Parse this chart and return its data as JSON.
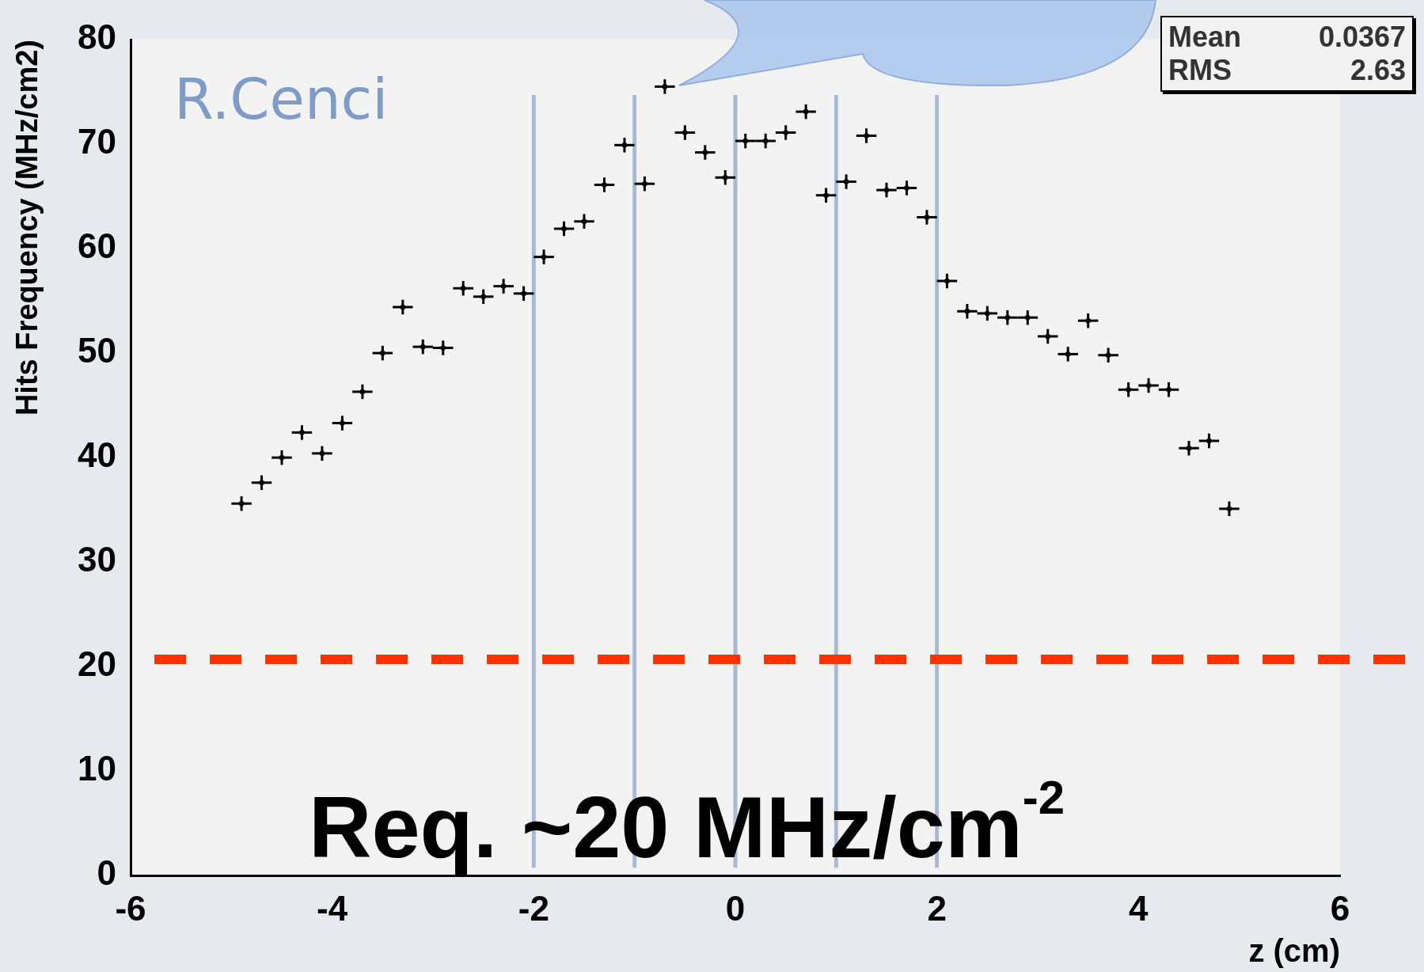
{
  "chart_data": {
    "type": "scatter",
    "xlabel": "z (cm)",
    "ylabel": "Hits Frequency (MHz/cm2)",
    "x": [
      -4.9,
      -4.7,
      -4.5,
      -4.3,
      -4.1,
      -3.9,
      -3.7,
      -3.5,
      -3.3,
      -3.1,
      -2.9,
      -2.7,
      -2.5,
      -2.3,
      -2.1,
      -1.9,
      -1.7,
      -1.5,
      -1.3,
      -1.1,
      -0.9,
      -0.7,
      -0.5,
      -0.3,
      -0.1,
      0.1,
      0.3,
      0.5,
      0.7,
      0.9,
      1.1,
      1.3,
      1.5,
      1.7,
      1.9,
      2.1,
      2.3,
      2.5,
      2.7,
      2.9,
      3.1,
      3.3,
      3.5,
      3.7,
      3.9,
      4.1,
      4.3,
      4.5,
      4.7,
      4.9
    ],
    "values": [
      35.6,
      37.6,
      40.0,
      42.4,
      40.4,
      43.3,
      46.3,
      50.0,
      54.4,
      50.6,
      50.5,
      56.2,
      55.4,
      56.4,
      55.7,
      59.2,
      61.9,
      62.6,
      66.1,
      69.9,
      66.2,
      75.5,
      71.1,
      69.2,
      66.8,
      70.3,
      70.3,
      71.1,
      73.1,
      65.1,
      66.4,
      70.8,
      65.6,
      65.8,
      63.0,
      56.9,
      54.0,
      53.8,
      53.4,
      53.4,
      51.6,
      49.9,
      53.1,
      49.8,
      46.5,
      46.9,
      46.5,
      40.9,
      41.6,
      35.1
    ],
    "color": "#000000",
    "errors": [
      0.7,
      0.7,
      0.7,
      0.7,
      0.7,
      0.7,
      0.7,
      0.7,
      0.7,
      0.7,
      0.7,
      0.7,
      0.7,
      0.7,
      0.7,
      0.7,
      0.7,
      0.7,
      0.7,
      0.7,
      0.7,
      0.7,
      0.7,
      0.7,
      0.7,
      0.7,
      0.7,
      0.7,
      0.7,
      0.7,
      0.7,
      0.7,
      0.7,
      0.7,
      0.7,
      0.7,
      0.7,
      0.7,
      0.7,
      0.7,
      0.7,
      0.7,
      0.7,
      0.7,
      0.7,
      0.7,
      0.7,
      0.7,
      0.7,
      0.7
    ],
    "xerrors": [
      0.1,
      0.1,
      0.1,
      0.1,
      0.1,
      0.1,
      0.1,
      0.1,
      0.1,
      0.1,
      0.1,
      0.1,
      0.1,
      0.1,
      0.1,
      0.1,
      0.1,
      0.1,
      0.1,
      0.1,
      0.1,
      0.1,
      0.1,
      0.1,
      0.1,
      0.1,
      0.1,
      0.1,
      0.1,
      0.1,
      0.1,
      0.1,
      0.1,
      0.1,
      0.1,
      0.1,
      0.1,
      0.1,
      0.1,
      0.1,
      0.1,
      0.1,
      0.1,
      0.1,
      0.1,
      0.1,
      0.1,
      0.1,
      0.1,
      0.1
    ],
    "xlim": [
      -6,
      6
    ],
    "xticks": [
      -6,
      -4,
      -2,
      0,
      2,
      4,
      6
    ],
    "ylim": [
      0,
      80
    ],
    "yticks": [
      0,
      10,
      20,
      30,
      40,
      50,
      60,
      70,
      80
    ],
    "ref_lines": [
      {
        "axis": "x",
        "value": -2,
        "color": "#a9b8d3"
      },
      {
        "axis": "x",
        "value": -1,
        "color": "#a9b8d3"
      },
      {
        "axis": "x",
        "value": 0,
        "color": "#a9b8d3"
      },
      {
        "axis": "x",
        "value": 1,
        "color": "#a9b8d3"
      },
      {
        "axis": "x",
        "value": 2,
        "color": "#a9b8d3"
      },
      {
        "axis": "y",
        "value": 20.7,
        "label": "Req. ~20 MHz/cm$^{-2}$",
        "color": "#ff3300",
        "line_style": "dashed"
      }
    ],
    "annotations": [
      "R.Cenci",
      "Mean 0.0367",
      "RMS 2.63"
    ]
  }
}
